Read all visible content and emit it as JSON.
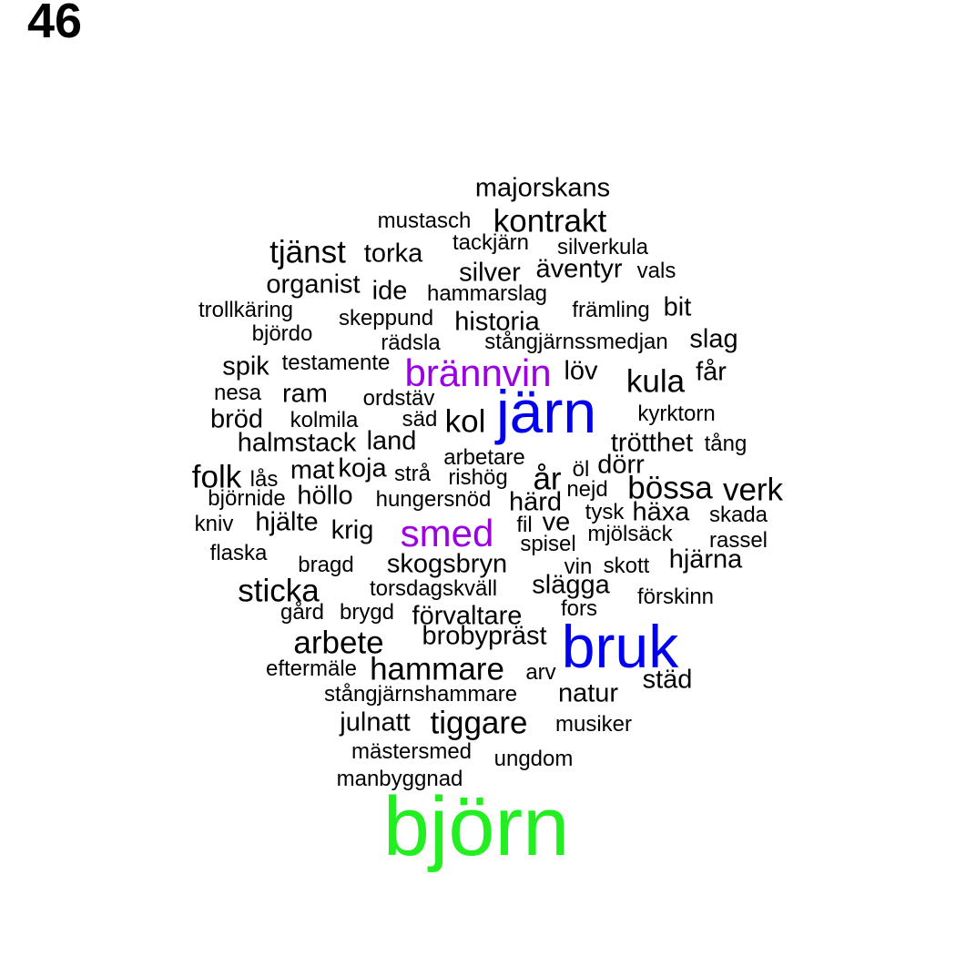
{
  "page_number": "46",
  "colors": {
    "default": "#000000",
    "blue": "#0000ee",
    "green": "#22ee22",
    "purple": "#9a00e0"
  },
  "words": [
    {
      "text": "majorskans",
      "size": "m"
    },
    {
      "text": "mustasch",
      "size": "s"
    },
    {
      "text": "kontrakt",
      "size": "l"
    },
    {
      "text": "tjänst",
      "size": "l"
    },
    {
      "text": "torka",
      "size": "m"
    },
    {
      "text": "tackjärn",
      "size": "s"
    },
    {
      "text": "silverkula",
      "size": "s"
    },
    {
      "text": "silver",
      "size": "m"
    },
    {
      "text": "äventyr",
      "size": "m"
    },
    {
      "text": "vals",
      "size": "s"
    },
    {
      "text": "organist",
      "size": "m"
    },
    {
      "text": "ide",
      "size": "m"
    },
    {
      "text": "hammarslag",
      "size": "s"
    },
    {
      "text": "trollkäring",
      "size": "s"
    },
    {
      "text": "bit",
      "size": "m"
    },
    {
      "text": "främling",
      "size": "s"
    },
    {
      "text": "skeppund",
      "size": "s"
    },
    {
      "text": "historia",
      "size": "m"
    },
    {
      "text": "björdo",
      "size": "s"
    },
    {
      "text": "rädsla",
      "size": "s"
    },
    {
      "text": "stångjärnssmedjan",
      "size": "s"
    },
    {
      "text": "slag",
      "size": "m"
    },
    {
      "text": "spik",
      "size": "m"
    },
    {
      "text": "testamente",
      "size": "s"
    },
    {
      "text": "brännvin",
      "size": "xl",
      "color": "purple"
    },
    {
      "text": "löv",
      "size": "m"
    },
    {
      "text": "kula",
      "size": "l"
    },
    {
      "text": "får",
      "size": "m"
    },
    {
      "text": "nesa",
      "size": "s"
    },
    {
      "text": "ram",
      "size": "m"
    },
    {
      "text": "ordstäv",
      "size": "s"
    },
    {
      "text": "järn",
      "size": "xxl",
      "color": "blue"
    },
    {
      "text": "kyrktorn",
      "size": "s"
    },
    {
      "text": "bröd",
      "size": "m"
    },
    {
      "text": "kolmila",
      "size": "s"
    },
    {
      "text": "säd",
      "size": "s"
    },
    {
      "text": "kol",
      "size": "l"
    },
    {
      "text": "trötthet",
      "size": "m"
    },
    {
      "text": "tång",
      "size": "s"
    },
    {
      "text": "halmstack",
      "size": "m"
    },
    {
      "text": "land",
      "size": "m"
    },
    {
      "text": "arbetare",
      "size": "s"
    },
    {
      "text": "folk",
      "size": "l"
    },
    {
      "text": "lås",
      "size": "s"
    },
    {
      "text": "mat",
      "size": "m"
    },
    {
      "text": "koja",
      "size": "m"
    },
    {
      "text": "strå",
      "size": "s"
    },
    {
      "text": "rishög",
      "size": "s"
    },
    {
      "text": "år",
      "size": "l"
    },
    {
      "text": "öl",
      "size": "s"
    },
    {
      "text": "dörr",
      "size": "m"
    },
    {
      "text": "bössa",
      "size": "l"
    },
    {
      "text": "verk",
      "size": "l"
    },
    {
      "text": "björnide",
      "size": "s"
    },
    {
      "text": "höllo",
      "size": "m"
    },
    {
      "text": "hungersnöd",
      "size": "s"
    },
    {
      "text": "härd",
      "size": "m"
    },
    {
      "text": "nejd",
      "size": "s"
    },
    {
      "text": "tysk",
      "size": "s"
    },
    {
      "text": "häxa",
      "size": "m"
    },
    {
      "text": "skada",
      "size": "s"
    },
    {
      "text": "kniv",
      "size": "s"
    },
    {
      "text": "hjälte",
      "size": "m"
    },
    {
      "text": "krig",
      "size": "m"
    },
    {
      "text": "smed",
      "size": "xl",
      "color": "purple"
    },
    {
      "text": "fil",
      "size": "s"
    },
    {
      "text": "ve",
      "size": "m"
    },
    {
      "text": "mjölsäck",
      "size": "s"
    },
    {
      "text": "rassel",
      "size": "s"
    },
    {
      "text": "flaska",
      "size": "s"
    },
    {
      "text": "spisel",
      "size": "s"
    },
    {
      "text": "bragd",
      "size": "s"
    },
    {
      "text": "skogsbryn",
      "size": "m"
    },
    {
      "text": "vin",
      "size": "s"
    },
    {
      "text": "skott",
      "size": "s"
    },
    {
      "text": "hjärna",
      "size": "m"
    },
    {
      "text": "sticka",
      "size": "l"
    },
    {
      "text": "torsdagskväll",
      "size": "s"
    },
    {
      "text": "slägga",
      "size": "m"
    },
    {
      "text": "förskinn",
      "size": "s"
    },
    {
      "text": "gård",
      "size": "s"
    },
    {
      "text": "brygd",
      "size": "s"
    },
    {
      "text": "förvaltare",
      "size": "m"
    },
    {
      "text": "fors",
      "size": "s"
    },
    {
      "text": "arbete",
      "size": "l"
    },
    {
      "text": "brobypräst",
      "size": "m"
    },
    {
      "text": "bruk",
      "size": "xxl",
      "color": "blue"
    },
    {
      "text": "eftermäle",
      "size": "s"
    },
    {
      "text": "hammare",
      "size": "l"
    },
    {
      "text": "arv",
      "size": "s"
    },
    {
      "text": "städ",
      "size": "m"
    },
    {
      "text": "stångjärnshammare",
      "size": "s"
    },
    {
      "text": "natur",
      "size": "m"
    },
    {
      "text": "julnatt",
      "size": "m"
    },
    {
      "text": "tiggare",
      "size": "l"
    },
    {
      "text": "musiker",
      "size": "s"
    },
    {
      "text": "mästersmed",
      "size": "s"
    },
    {
      "text": "ungdom",
      "size": "s"
    },
    {
      "text": "manbyggnad",
      "size": "s"
    },
    {
      "text": "björn",
      "size": "xxxl",
      "color": "green"
    }
  ]
}
